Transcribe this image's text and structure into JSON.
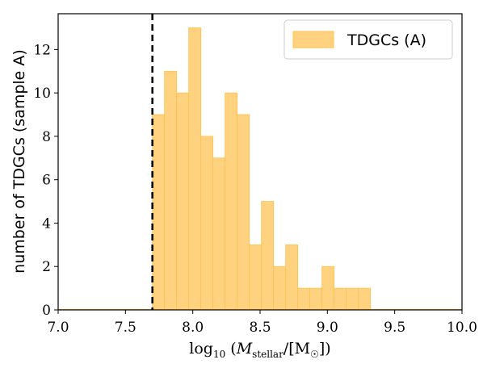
{
  "chart_data": {
    "type": "bar",
    "subtype": "histogram",
    "bin_edges": [
      7.7,
      7.79,
      7.88,
      7.97,
      8.06,
      8.15,
      8.24,
      8.33,
      8.42,
      8.51,
      8.6,
      8.69,
      8.78,
      8.87,
      8.96,
      9.05,
      9.14,
      9.23,
      9.32,
      9.41,
      9.5
    ],
    "values": [
      9,
      11,
      10,
      13,
      8,
      7,
      10,
      9,
      3,
      5,
      2,
      3,
      1,
      1,
      2,
      1,
      1,
      1,
      0,
      0
    ],
    "series": [
      {
        "name": "TDGCs (A)",
        "color": "#ffd27f",
        "edge_color": "#ffc04d"
      }
    ],
    "xlim": [
      7.0,
      10.0
    ],
    "ylim": [
      0,
      13.65
    ],
    "xticks": [
      "7.0",
      "7.5",
      "8.0",
      "8.5",
      "9.0",
      "9.5",
      "10.0"
    ],
    "xtick_values": [
      7.0,
      7.5,
      8.0,
      8.5,
      9.0,
      9.5,
      10.0
    ],
    "yticks": [
      "0",
      "2",
      "4",
      "6",
      "8",
      "10",
      "12"
    ],
    "ytick_values": [
      0,
      2,
      4,
      6,
      8,
      10,
      12
    ],
    "xlabel": "log₁₀ (M_stellar/[M☉])",
    "xlabel_parts": {
      "base": "log",
      "sub1": "10",
      "open": " (",
      "var": "M",
      "sub2": "stellar",
      "mid": "/[M",
      "sun": "☉",
      "close": "])"
    },
    "ylabel": "number of TDGCs (sample A)",
    "vline": {
      "x": 7.7,
      "style": "dashed",
      "color": "#000000"
    },
    "legend": {
      "placement": "top-right",
      "label": "TDGCs (A)"
    },
    "grid": false
  }
}
